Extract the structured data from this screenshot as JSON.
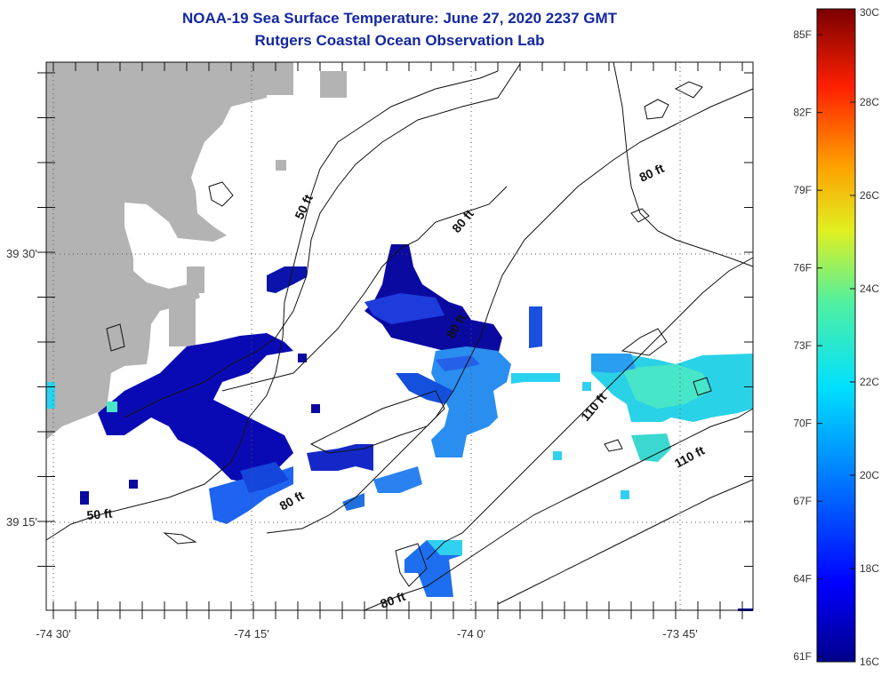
{
  "title": {
    "line1": "NOAA-19 Sea Surface Temperature:  June 27, 2020 2237 GMT",
    "line2": "Rutgers Coastal Ocean Observation Lab"
  },
  "axes": {
    "x_ticks": [
      {
        "label": "-74 30'",
        "lon": -74.5
      },
      {
        "label": "-74 15'",
        "lon": -74.25
      },
      {
        "label": "-74 0'",
        "lon": -74.0
      },
      {
        "label": "-73 45'",
        "lon": -73.75
      }
    ],
    "y_ticks": [
      {
        "label": "39 30'",
        "lat": 39.5
      },
      {
        "label": "39 15'",
        "lat": 39.25
      }
    ]
  },
  "contours": [
    {
      "label": "50 ft",
      "depth_ft": 50
    },
    {
      "label": "50 ft",
      "depth_ft": 50
    },
    {
      "label": "80 ft",
      "depth_ft": 80
    },
    {
      "label": "80 ft",
      "depth_ft": 80
    },
    {
      "label": "80 ft",
      "depth_ft": 80
    },
    {
      "label": "80 ft",
      "depth_ft": 80
    },
    {
      "label": "80 ft",
      "depth_ft": 80
    },
    {
      "label": "110 ft",
      "depth_ft": 110
    },
    {
      "label": "110 ft",
      "depth_ft": 110
    }
  ],
  "colorbar": {
    "celsius": [
      "30C",
      "28C",
      "26C",
      "24C",
      "22C",
      "20C",
      "18C",
      "16C"
    ],
    "fahrenheit": [
      "85F",
      "82F",
      "79F",
      "76F",
      "73F",
      "70F",
      "67F",
      "64F",
      "61F"
    ],
    "min_c": 16,
    "max_c": 30
  },
  "colors": {
    "land": "#b3b3b3",
    "title": "#1428a0"
  }
}
